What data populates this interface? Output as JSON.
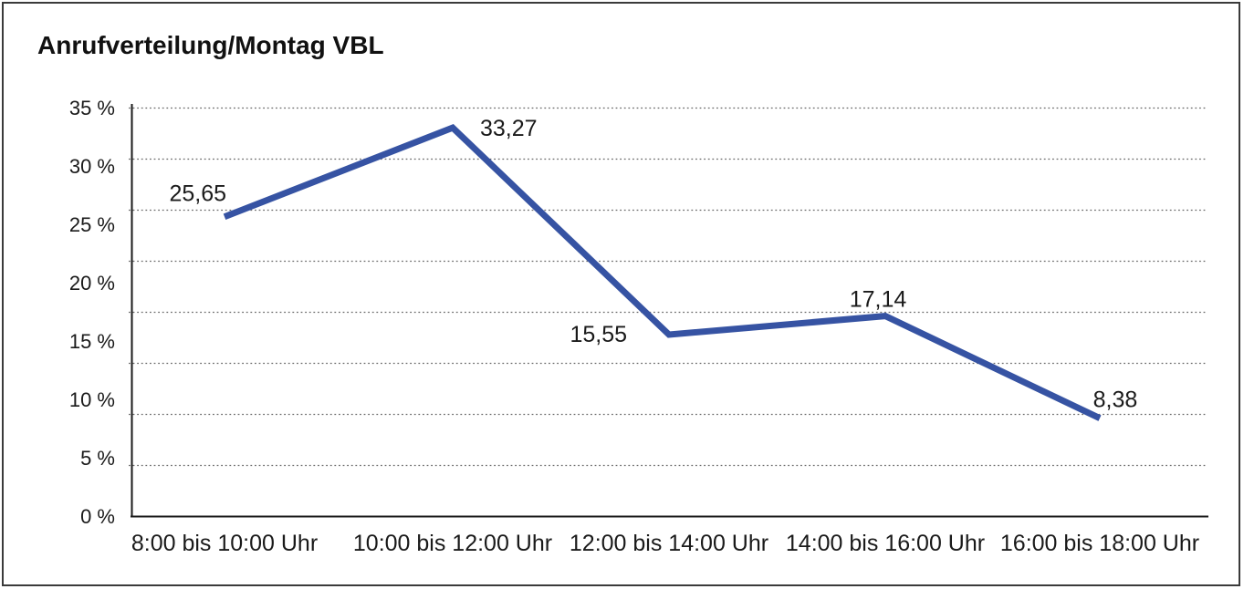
{
  "title": "Anrufverteilung/Montag VBL",
  "colors": {
    "line": "#3653A3",
    "grid": "#686868",
    "axis": "#1a1a1a",
    "text": "#1a1a1a",
    "frame": "#3a3a3a",
    "background": "#ffffff"
  },
  "chart_data": {
    "type": "line",
    "title": "Anrufverteilung/Montag VBL",
    "categories": [
      "8:00 bis 10:00 Uhr",
      "10:00 bis 12:00 Uhr",
      "12:00 bis 14:00 Uhr",
      "14:00 bis 16:00 Uhr",
      "16:00 bis 18:00 Uhr"
    ],
    "values": [
      25.65,
      33.27,
      15.55,
      17.14,
      8.38
    ],
    "value_labels": [
      "25,65",
      "33,27",
      "15,55",
      "17,14",
      "8,38"
    ],
    "ylim": [
      0,
      35
    ],
    "ytick_values": [
      0,
      5,
      10,
      15,
      20,
      25,
      30,
      35
    ],
    "ytick_labels": [
      "0 %",
      "5 %",
      "10 %",
      "15 %",
      "20 %",
      "25 %",
      "30 %",
      "35 %"
    ],
    "xlabel": "",
    "ylabel": "",
    "grid": "horizontal-dotted",
    "legend": "none"
  }
}
